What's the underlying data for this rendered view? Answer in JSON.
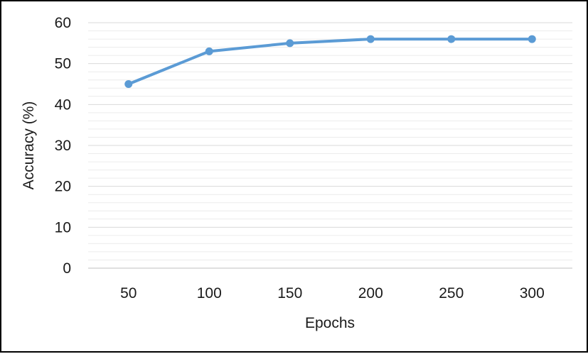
{
  "chart_data": {
    "type": "line",
    "title": "",
    "xlabel": "Epochs",
    "ylabel": "Accuracy (%)",
    "categories": [
      "50",
      "100",
      "150",
      "200",
      "250",
      "300"
    ],
    "series": [
      {
        "values": [
          45,
          53,
          55,
          56,
          56,
          56
        ],
        "color": "#5b9bd5",
        "marker": "circle"
      }
    ],
    "ylim": [
      0,
      60
    ],
    "yticks": [
      "0",
      "10",
      "20",
      "30",
      "40",
      "50",
      "60"
    ],
    "grid": "horizontal major and minor",
    "legend": "none"
  }
}
